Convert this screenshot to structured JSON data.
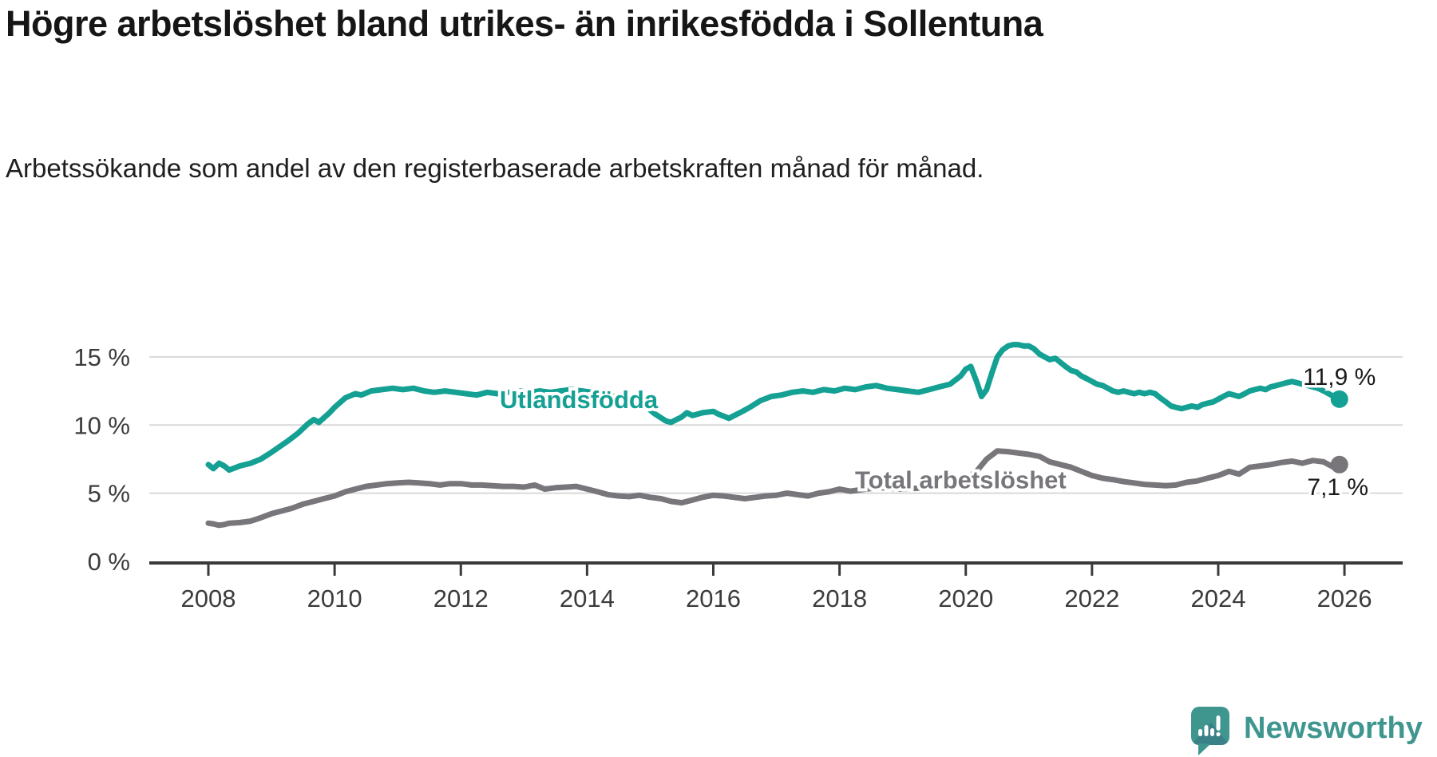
{
  "header": {
    "title": "Högre arbetslöshet bland utrikes- än inrikesfödda i Sollentuna",
    "subtitle": "Arbetssökande som andel av den registerbaserade arbetskraften månad för månad."
  },
  "branding": {
    "logo_text": "Newsworthy",
    "logo_icon": "newsworthy-bars-bubble-icon",
    "brand_color": "#3F968F"
  },
  "chart_data": {
    "type": "line",
    "title": "",
    "xlabel": "",
    "ylabel": "",
    "grid": true,
    "legend_position": "inline-on-line",
    "x_axis": {
      "ticks": [
        2008,
        2010,
        2012,
        2014,
        2016,
        2018,
        2020,
        2022,
        2024,
        2026
      ],
      "labels": [
        "2008",
        "2010",
        "2012",
        "2014",
        "2016",
        "2018",
        "2020",
        "2022",
        "2024",
        "2026"
      ],
      "range": [
        2007.1,
        2026.9
      ]
    },
    "y_axis": {
      "ticks": [
        0,
        5,
        10,
        15
      ],
      "labels": [
        "0 %",
        "5 %",
        "10 %",
        "15 %"
      ],
      "range": [
        0,
        17.5
      ]
    },
    "series": [
      {
        "name": "Utlandsfödda",
        "color": "#14A093",
        "end_label": "11,9 %",
        "end_value": 11.9,
        "points": [
          [
            2008.0,
            7.1
          ],
          [
            2008.08,
            6.8
          ],
          [
            2008.17,
            7.2
          ],
          [
            2008.25,
            7.0
          ],
          [
            2008.33,
            6.7
          ],
          [
            2008.5,
            7.0
          ],
          [
            2008.67,
            7.2
          ],
          [
            2008.83,
            7.5
          ],
          [
            2009.0,
            8.0
          ],
          [
            2009.25,
            8.8
          ],
          [
            2009.42,
            9.4
          ],
          [
            2009.58,
            10.1
          ],
          [
            2009.67,
            10.4
          ],
          [
            2009.75,
            10.2
          ],
          [
            2009.92,
            10.9
          ],
          [
            2010.0,
            11.3
          ],
          [
            2010.17,
            12.0
          ],
          [
            2010.33,
            12.3
          ],
          [
            2010.42,
            12.2
          ],
          [
            2010.58,
            12.5
          ],
          [
            2010.75,
            12.6
          ],
          [
            2010.92,
            12.7
          ],
          [
            2011.08,
            12.6
          ],
          [
            2011.25,
            12.7
          ],
          [
            2011.42,
            12.5
          ],
          [
            2011.58,
            12.4
          ],
          [
            2011.75,
            12.5
          ],
          [
            2011.92,
            12.4
          ],
          [
            2012.08,
            12.3
          ],
          [
            2012.25,
            12.2
          ],
          [
            2012.42,
            12.4
          ],
          [
            2012.58,
            12.3
          ],
          [
            2012.75,
            12.4
          ],
          [
            2012.92,
            12.5
          ],
          [
            2013.08,
            12.4
          ],
          [
            2013.25,
            12.5
          ],
          [
            2013.42,
            12.4
          ],
          [
            2013.58,
            12.5
          ],
          [
            2013.75,
            12.6
          ],
          [
            2013.92,
            12.5
          ],
          [
            2014.08,
            12.4
          ],
          [
            2014.25,
            12.3
          ],
          [
            2014.42,
            12.1
          ],
          [
            2014.58,
            11.9
          ],
          [
            2014.75,
            11.7
          ],
          [
            2014.92,
            11.4
          ],
          [
            2015.08,
            10.8
          ],
          [
            2015.25,
            10.3
          ],
          [
            2015.33,
            10.2
          ],
          [
            2015.5,
            10.6
          ],
          [
            2015.58,
            10.9
          ],
          [
            2015.67,
            10.7
          ],
          [
            2015.83,
            10.9
          ],
          [
            2016.0,
            11.0
          ],
          [
            2016.08,
            10.8
          ],
          [
            2016.25,
            10.5
          ],
          [
            2016.42,
            10.9
          ],
          [
            2016.58,
            11.3
          ],
          [
            2016.75,
            11.8
          ],
          [
            2016.92,
            12.1
          ],
          [
            2017.08,
            12.2
          ],
          [
            2017.25,
            12.4
          ],
          [
            2017.42,
            12.5
          ],
          [
            2017.58,
            12.4
          ],
          [
            2017.75,
            12.6
          ],
          [
            2017.92,
            12.5
          ],
          [
            2018.08,
            12.7
          ],
          [
            2018.25,
            12.6
          ],
          [
            2018.42,
            12.8
          ],
          [
            2018.58,
            12.9
          ],
          [
            2018.75,
            12.7
          ],
          [
            2018.92,
            12.6
          ],
          [
            2019.08,
            12.5
          ],
          [
            2019.25,
            12.4
          ],
          [
            2019.42,
            12.6
          ],
          [
            2019.58,
            12.8
          ],
          [
            2019.75,
            13.0
          ],
          [
            2019.92,
            13.6
          ],
          [
            2020.0,
            14.1
          ],
          [
            2020.08,
            14.3
          ],
          [
            2020.17,
            13.2
          ],
          [
            2020.25,
            12.1
          ],
          [
            2020.33,
            12.6
          ],
          [
            2020.42,
            13.9
          ],
          [
            2020.5,
            15.0
          ],
          [
            2020.58,
            15.5
          ],
          [
            2020.67,
            15.8
          ],
          [
            2020.75,
            15.9
          ],
          [
            2020.83,
            15.9
          ],
          [
            2020.92,
            15.8
          ],
          [
            2021.0,
            15.8
          ],
          [
            2021.08,
            15.6
          ],
          [
            2021.17,
            15.2
          ],
          [
            2021.25,
            15.0
          ],
          [
            2021.33,
            14.8
          ],
          [
            2021.42,
            14.9
          ],
          [
            2021.5,
            14.6
          ],
          [
            2021.58,
            14.3
          ],
          [
            2021.67,
            14.0
          ],
          [
            2021.75,
            13.9
          ],
          [
            2021.83,
            13.6
          ],
          [
            2021.92,
            13.4
          ],
          [
            2022.0,
            13.2
          ],
          [
            2022.08,
            13.0
          ],
          [
            2022.17,
            12.9
          ],
          [
            2022.25,
            12.7
          ],
          [
            2022.33,
            12.5
          ],
          [
            2022.42,
            12.4
          ],
          [
            2022.5,
            12.5
          ],
          [
            2022.58,
            12.4
          ],
          [
            2022.67,
            12.3
          ],
          [
            2022.75,
            12.4
          ],
          [
            2022.83,
            12.3
          ],
          [
            2022.92,
            12.4
          ],
          [
            2023.0,
            12.3
          ],
          [
            2023.08,
            12.0
          ],
          [
            2023.17,
            11.7
          ],
          [
            2023.25,
            11.4
          ],
          [
            2023.33,
            11.3
          ],
          [
            2023.42,
            11.2
          ],
          [
            2023.5,
            11.3
          ],
          [
            2023.58,
            11.4
          ],
          [
            2023.67,
            11.3
          ],
          [
            2023.75,
            11.5
          ],
          [
            2023.83,
            11.6
          ],
          [
            2023.92,
            11.7
          ],
          [
            2024.0,
            11.9
          ],
          [
            2024.08,
            12.1
          ],
          [
            2024.17,
            12.3
          ],
          [
            2024.25,
            12.2
          ],
          [
            2024.33,
            12.1
          ],
          [
            2024.42,
            12.3
          ],
          [
            2024.5,
            12.5
          ],
          [
            2024.58,
            12.6
          ],
          [
            2024.67,
            12.7
          ],
          [
            2024.75,
            12.6
          ],
          [
            2024.83,
            12.8
          ],
          [
            2024.92,
            12.9
          ],
          [
            2025.0,
            13.0
          ],
          [
            2025.08,
            13.1
          ],
          [
            2025.17,
            13.2
          ],
          [
            2025.25,
            13.1
          ],
          [
            2025.33,
            13.0
          ],
          [
            2025.42,
            12.9
          ],
          [
            2025.5,
            12.8
          ],
          [
            2025.58,
            12.7
          ],
          [
            2025.67,
            12.5
          ],
          [
            2025.75,
            12.3
          ],
          [
            2025.83,
            12.1
          ],
          [
            2025.92,
            11.9
          ]
        ]
      },
      {
        "name": "Total arbetslöshet",
        "color": "#78767B",
        "end_label": "7,1 %",
        "end_value": 7.1,
        "points": [
          [
            2008.0,
            2.8
          ],
          [
            2008.08,
            2.75
          ],
          [
            2008.17,
            2.65
          ],
          [
            2008.25,
            2.7
          ],
          [
            2008.33,
            2.8
          ],
          [
            2008.5,
            2.85
          ],
          [
            2008.67,
            2.95
          ],
          [
            2008.83,
            3.2
          ],
          [
            2009.0,
            3.5
          ],
          [
            2009.17,
            3.7
          ],
          [
            2009.33,
            3.9
          ],
          [
            2009.5,
            4.2
          ],
          [
            2009.67,
            4.4
          ],
          [
            2009.83,
            4.6
          ],
          [
            2010.0,
            4.8
          ],
          [
            2010.17,
            5.1
          ],
          [
            2010.33,
            5.3
          ],
          [
            2010.5,
            5.5
          ],
          [
            2010.67,
            5.6
          ],
          [
            2010.83,
            5.7
          ],
          [
            2011.0,
            5.75
          ],
          [
            2011.17,
            5.8
          ],
          [
            2011.33,
            5.75
          ],
          [
            2011.5,
            5.7
          ],
          [
            2011.67,
            5.6
          ],
          [
            2011.83,
            5.7
          ],
          [
            2012.0,
            5.7
          ],
          [
            2012.17,
            5.6
          ],
          [
            2012.33,
            5.6
          ],
          [
            2012.5,
            5.55
          ],
          [
            2012.67,
            5.5
          ],
          [
            2012.83,
            5.5
          ],
          [
            2013.0,
            5.45
          ],
          [
            2013.17,
            5.6
          ],
          [
            2013.33,
            5.3
          ],
          [
            2013.5,
            5.4
          ],
          [
            2013.67,
            5.45
          ],
          [
            2013.83,
            5.5
          ],
          [
            2014.0,
            5.3
          ],
          [
            2014.17,
            5.1
          ],
          [
            2014.33,
            4.9
          ],
          [
            2014.5,
            4.8
          ],
          [
            2014.67,
            4.75
          ],
          [
            2014.83,
            4.85
          ],
          [
            2015.0,
            4.7
          ],
          [
            2015.17,
            4.6
          ],
          [
            2015.33,
            4.4
          ],
          [
            2015.5,
            4.3
          ],
          [
            2015.67,
            4.5
          ],
          [
            2015.83,
            4.7
          ],
          [
            2016.0,
            4.85
          ],
          [
            2016.17,
            4.8
          ],
          [
            2016.33,
            4.7
          ],
          [
            2016.5,
            4.6
          ],
          [
            2016.67,
            4.7
          ],
          [
            2016.83,
            4.8
          ],
          [
            2017.0,
            4.85
          ],
          [
            2017.17,
            5.0
          ],
          [
            2017.33,
            4.9
          ],
          [
            2017.5,
            4.8
          ],
          [
            2017.67,
            5.0
          ],
          [
            2017.83,
            5.1
          ],
          [
            2018.0,
            5.3
          ],
          [
            2018.17,
            5.15
          ],
          [
            2018.33,
            5.25
          ],
          [
            2018.5,
            5.35
          ],
          [
            2018.67,
            5.4
          ],
          [
            2018.83,
            5.35
          ],
          [
            2019.0,
            5.3
          ],
          [
            2019.17,
            5.35
          ],
          [
            2019.33,
            5.4
          ],
          [
            2019.5,
            5.5
          ],
          [
            2019.67,
            5.6
          ],
          [
            2019.83,
            5.8
          ],
          [
            2020.0,
            6.1
          ],
          [
            2020.17,
            6.6
          ],
          [
            2020.33,
            7.5
          ],
          [
            2020.5,
            8.1
          ],
          [
            2020.67,
            8.05
          ],
          [
            2020.83,
            7.95
          ],
          [
            2021.0,
            7.85
          ],
          [
            2021.17,
            7.7
          ],
          [
            2021.33,
            7.3
          ],
          [
            2021.5,
            7.1
          ],
          [
            2021.67,
            6.9
          ],
          [
            2021.83,
            6.6
          ],
          [
            2022.0,
            6.3
          ],
          [
            2022.17,
            6.1
          ],
          [
            2022.33,
            6.0
          ],
          [
            2022.5,
            5.85
          ],
          [
            2022.67,
            5.75
          ],
          [
            2022.83,
            5.65
          ],
          [
            2023.0,
            5.6
          ],
          [
            2023.17,
            5.55
          ],
          [
            2023.33,
            5.6
          ],
          [
            2023.5,
            5.8
          ],
          [
            2023.67,
            5.9
          ],
          [
            2023.83,
            6.1
          ],
          [
            2024.0,
            6.3
          ],
          [
            2024.17,
            6.6
          ],
          [
            2024.33,
            6.4
          ],
          [
            2024.5,
            6.9
          ],
          [
            2024.67,
            7.0
          ],
          [
            2024.83,
            7.1
          ],
          [
            2025.0,
            7.25
          ],
          [
            2025.17,
            7.35
          ],
          [
            2025.33,
            7.2
          ],
          [
            2025.5,
            7.4
          ],
          [
            2025.67,
            7.3
          ],
          [
            2025.75,
            7.1
          ],
          [
            2025.83,
            6.9
          ],
          [
            2025.92,
            7.1
          ]
        ]
      }
    ]
  }
}
